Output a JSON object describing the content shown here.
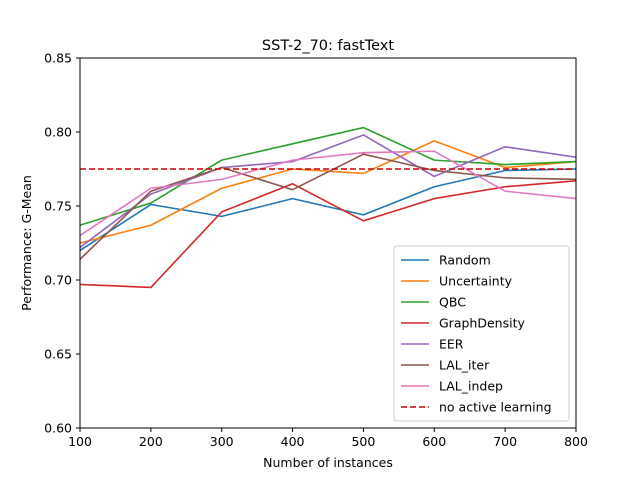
{
  "chart_data": {
    "type": "line",
    "title": "SST-2_70: fastText",
    "xlabel": "Number of instances",
    "ylabel": "Performance: G-Mean",
    "xlim": [
      100,
      800
    ],
    "ylim": [
      0.6,
      0.85
    ],
    "xticks": [
      "100",
      "200",
      "300",
      "400",
      "500",
      "600",
      "700",
      "800"
    ],
    "yticks": [
      "0.60",
      "0.65",
      "0.70",
      "0.75",
      "0.80",
      "0.85"
    ],
    "grid": false,
    "legend_position": "lower-right",
    "x": [
      100,
      200,
      300,
      400,
      500,
      600,
      700,
      800
    ],
    "series": [
      {
        "name": "Random",
        "color": "#1f77b4",
        "style": "solid",
        "values": [
          0.72,
          0.751,
          0.743,
          0.755,
          0.744,
          0.763,
          0.774,
          0.775
        ]
      },
      {
        "name": "Uncertainty",
        "color": "#ff7f0e",
        "style": "solid",
        "values": [
          0.725,
          0.737,
          0.762,
          0.775,
          0.772,
          0.794,
          0.776,
          0.78
        ]
      },
      {
        "name": "QBC",
        "color": "#2ca02c",
        "style": "solid",
        "values": [
          0.737,
          0.752,
          0.781,
          0.792,
          0.803,
          0.781,
          0.778,
          0.78
        ]
      },
      {
        "name": "GraphDensity",
        "color": "#d62728",
        "style": "solid",
        "values": [
          0.697,
          0.695,
          0.746,
          0.765,
          0.74,
          0.755,
          0.763,
          0.767
        ]
      },
      {
        "name": "EER",
        "color": "#9467bd",
        "style": "solid",
        "values": [
          0.722,
          0.758,
          0.776,
          0.78,
          0.798,
          0.77,
          0.79,
          0.783
        ]
      },
      {
        "name": "LAL_iter",
        "color": "#8c564b",
        "style": "solid",
        "values": [
          0.714,
          0.76,
          0.776,
          0.761,
          0.785,
          0.774,
          0.769,
          0.768
        ]
      },
      {
        "name": "LAL_indep",
        "color": "#e377c2",
        "style": "solid",
        "values": [
          0.73,
          0.762,
          0.768,
          0.781,
          0.786,
          0.787,
          0.76,
          0.755
        ]
      },
      {
        "name": "no active learning",
        "color": "#cc0000",
        "style": "dashed",
        "values": [
          0.775,
          0.775,
          0.775,
          0.775,
          0.775,
          0.775,
          0.775,
          0.775
        ]
      }
    ]
  }
}
